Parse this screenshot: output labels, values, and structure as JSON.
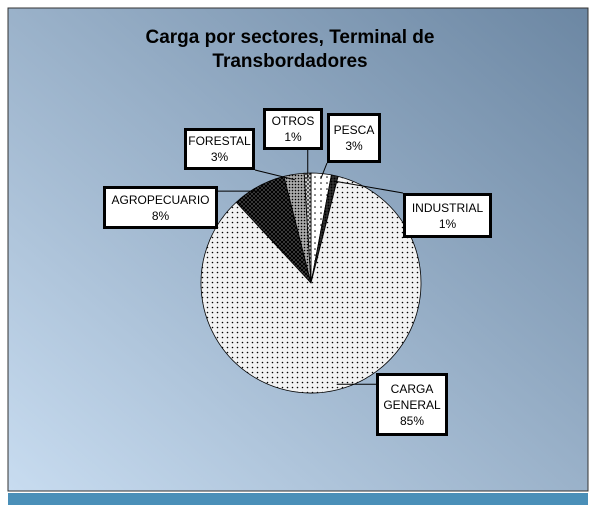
{
  "chart_data": {
    "type": "pie",
    "title": "Carga por sectores, Terminal de Transbordadores",
    "categories": [
      "PESCA",
      "INDUSTRIAL",
      "CARGA GENERAL",
      "AGROPECUARIO",
      "FORESTAL",
      "OTROS"
    ],
    "values": [
      3,
      1,
      85,
      8,
      3,
      1
    ],
    "value_labels": [
      "3%",
      "1%",
      "85%",
      "8%",
      "3%",
      "1%"
    ],
    "colors": [
      "#ffffff",
      "#333333",
      "#f2f2f2",
      "#555555",
      "#aaaaaa",
      "#dddddd"
    ]
  }
}
